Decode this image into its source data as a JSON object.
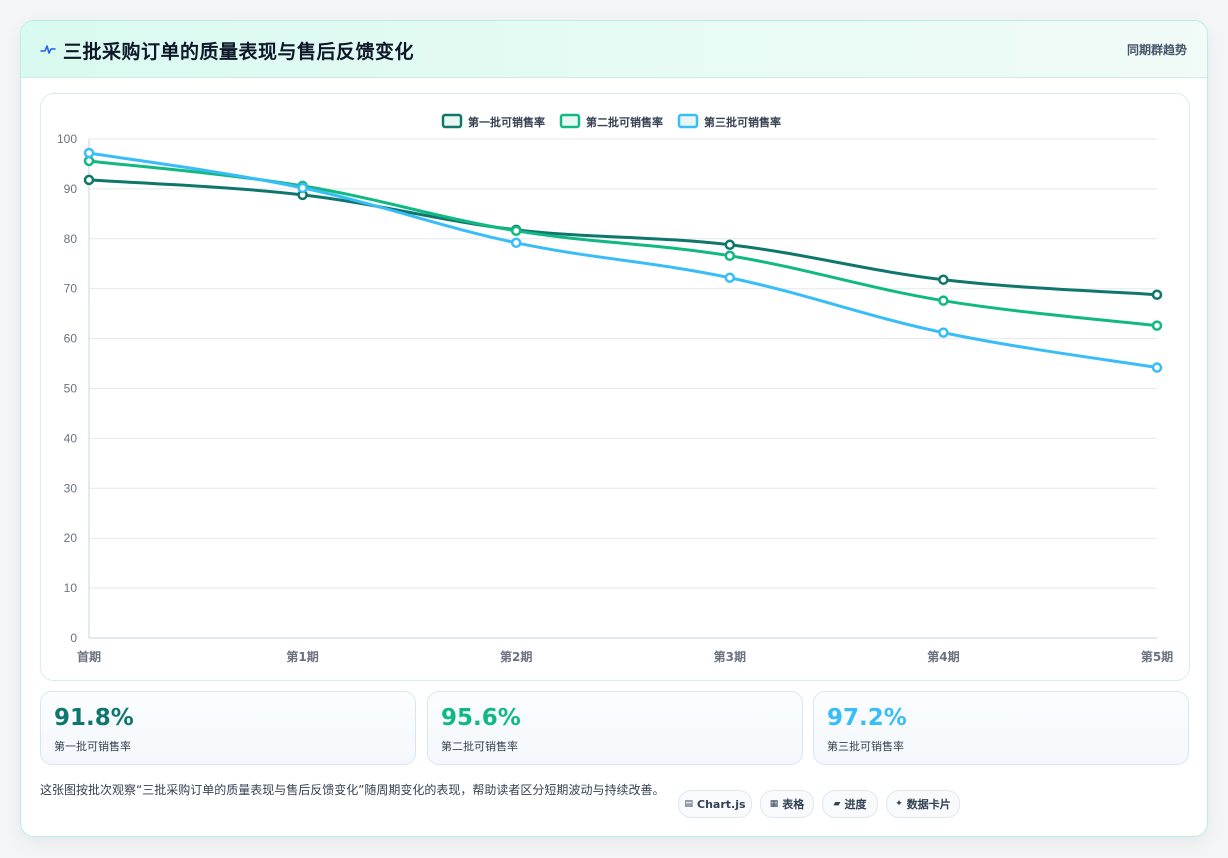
{
  "header": {
    "title": "三批采购订单的质量表现与售后反馈变化",
    "right_label": "同期群趋势",
    "title_icon": "activity-icon"
  },
  "chart_data": {
    "type": "line",
    "categories": [
      "首期",
      "第1期",
      "第2期",
      "第3期",
      "第4期",
      "第5期"
    ],
    "series": [
      {
        "name": "第一批可销售率",
        "values": [
          91.8,
          88.8,
          81.8,
          78.8,
          71.8,
          68.8
        ],
        "color": "#0f766e"
      },
      {
        "name": "第二批可销售率",
        "values": [
          95.6,
          90.6,
          81.6,
          76.6,
          67.6,
          62.6
        ],
        "color": "#10b981"
      },
      {
        "name": "第三批可销售率",
        "values": [
          97.2,
          90.2,
          79.2,
          72.2,
          61.2,
          54.2
        ],
        "color": "#38bdf8"
      }
    ],
    "ylim": [
      0,
      100
    ],
    "yticks": [
      "0",
      "10",
      "20",
      "30",
      "40",
      "50",
      "60",
      "70",
      "80",
      "90",
      "100"
    ],
    "grid": true,
    "legend": "top-center",
    "xlabel": "",
    "ylabel": ""
  },
  "kpis": [
    {
      "value": "91.8%",
      "label": "第一批可销售率",
      "color": "#0f766e"
    },
    {
      "value": "95.6%",
      "label": "第二批可销售率",
      "color": "#10b981"
    },
    {
      "value": "97.2%",
      "label": "第三批可销售率",
      "color": "#38bdf8"
    }
  ],
  "footer": {
    "description": "这张图按批次观察“三批采购订单的质量表现与售后反馈变化”随周期变化的表现，帮助读者区分短期波动与持续改善。",
    "pills": [
      {
        "icon": "chart-icon",
        "glyph": "▤",
        "label": "Chart.js"
      },
      {
        "icon": "table-icon",
        "glyph": "▦",
        "label": "表格"
      },
      {
        "icon": "progress-icon",
        "glyph": "▰",
        "label": "进度"
      },
      {
        "icon": "card-icon",
        "glyph": "✦",
        "label": "数据卡片"
      }
    ]
  }
}
